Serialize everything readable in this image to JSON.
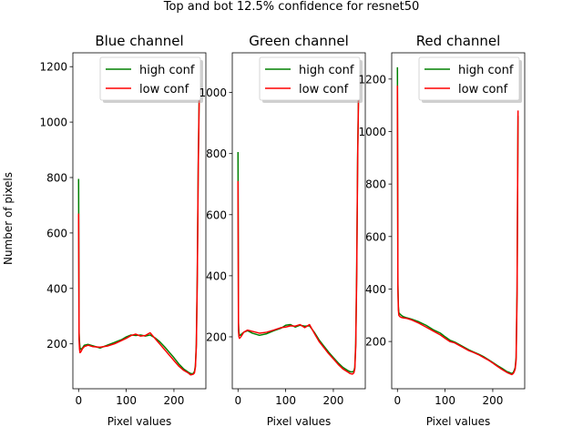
{
  "figure": {
    "suptitle": "Top and bot 12.5% confidence for resnet50",
    "ylabel": "Number of pixels"
  },
  "colors": {
    "high_conf": "#008000",
    "low_conf": "#ff0000",
    "axes": "#000000",
    "background": "#ffffff"
  },
  "chart_data": [
    {
      "type": "line",
      "title": "Blue channel",
      "xlabel": "Pixel values",
      "ylabel": "Number of pixels",
      "xlim": [
        -12,
        267
      ],
      "ylim": [
        38,
        1250
      ],
      "xticks": [
        0,
        100,
        200
      ],
      "yticks": [
        200,
        400,
        600,
        800,
        1000,
        1200
      ],
      "legend": "top-right",
      "grid": false,
      "series": [
        {
          "name": "high conf",
          "x": [
            0,
            1,
            2,
            3,
            5,
            8,
            12,
            20,
            30,
            45,
            60,
            75,
            90,
            100,
            110,
            120,
            130,
            140,
            150,
            160,
            170,
            180,
            190,
            200,
            210,
            220,
            230,
            235,
            240,
            243,
            245,
            247,
            249,
            251,
            253,
            255
          ],
          "y": [
            795,
            240,
            205,
            185,
            180,
            185,
            195,
            198,
            193,
            185,
            195,
            205,
            215,
            225,
            232,
            230,
            232,
            228,
            232,
            222,
            208,
            190,
            170,
            150,
            128,
            110,
            98,
            93,
            92,
            100,
            120,
            200,
            450,
            850,
            1100,
            1140
          ]
        },
        {
          "name": "low conf",
          "x": [
            0,
            1,
            2,
            3,
            5,
            8,
            12,
            20,
            30,
            45,
            60,
            75,
            90,
            100,
            110,
            120,
            130,
            140,
            150,
            160,
            170,
            180,
            190,
            200,
            210,
            220,
            230,
            235,
            240,
            243,
            245,
            247,
            249,
            251,
            253,
            255
          ],
          "y": [
            670,
            215,
            180,
            168,
            172,
            182,
            190,
            195,
            190,
            188,
            192,
            200,
            212,
            220,
            230,
            235,
            228,
            230,
            240,
            220,
            200,
            180,
            160,
            140,
            120,
            105,
            95,
            88,
            90,
            95,
            115,
            190,
            430,
            830,
            1080,
            1120
          ]
        }
      ]
    },
    {
      "type": "line",
      "title": "Green channel",
      "xlabel": "Pixel values",
      "xlim": [
        -12,
        267
      ],
      "ylim": [
        30,
        1130
      ],
      "xticks": [
        0,
        100,
        200
      ],
      "yticks": [
        200,
        400,
        600,
        800,
        1000
      ],
      "legend": "top-right",
      "grid": false,
      "series": [
        {
          "name": "high conf",
          "x": [
            0,
            1,
            2,
            3,
            5,
            8,
            12,
            20,
            30,
            45,
            60,
            75,
            90,
            100,
            110,
            120,
            130,
            140,
            150,
            160,
            170,
            180,
            190,
            200,
            210,
            220,
            230,
            235,
            240,
            243,
            245,
            247,
            249,
            251,
            253,
            255
          ],
          "y": [
            805,
            245,
            215,
            205,
            205,
            210,
            215,
            220,
            212,
            205,
            210,
            220,
            228,
            238,
            240,
            232,
            238,
            235,
            236,
            215,
            190,
            170,
            150,
            132,
            115,
            100,
            90,
            86,
            85,
            88,
            100,
            180,
            420,
            800,
            1020,
            1070
          ]
        },
        {
          "name": "low conf",
          "x": [
            0,
            1,
            2,
            3,
            5,
            8,
            12,
            20,
            30,
            45,
            60,
            75,
            90,
            100,
            110,
            120,
            130,
            140,
            150,
            160,
            170,
            180,
            190,
            200,
            210,
            220,
            230,
            235,
            240,
            243,
            245,
            247,
            249,
            251,
            253,
            255
          ],
          "y": [
            710,
            220,
            200,
            195,
            198,
            205,
            215,
            222,
            218,
            212,
            215,
            222,
            230,
            232,
            236,
            235,
            240,
            230,
            240,
            212,
            185,
            165,
            145,
            128,
            110,
            95,
            85,
            80,
            78,
            82,
            95,
            170,
            400,
            780,
            1000,
            1050
          ]
        }
      ]
    },
    {
      "type": "line",
      "title": "Red channel",
      "xlabel": "Pixel values",
      "xlim": [
        -12,
        267
      ],
      "ylim": [
        20,
        1300
      ],
      "xticks": [
        0,
        100,
        200
      ],
      "yticks": [
        200,
        400,
        600,
        800,
        1000,
        1200
      ],
      "legend": "top-right",
      "grid": false,
      "series": [
        {
          "name": "high conf",
          "x": [
            0,
            1,
            2,
            3,
            5,
            8,
            12,
            20,
            30,
            45,
            60,
            75,
            90,
            100,
            110,
            120,
            130,
            140,
            150,
            160,
            170,
            180,
            190,
            200,
            210,
            220,
            230,
            235,
            240,
            243,
            245,
            247,
            249,
            251,
            253
          ],
          "y": [
            1245,
            420,
            335,
            310,
            305,
            300,
            295,
            290,
            285,
            275,
            262,
            245,
            232,
            218,
            205,
            198,
            188,
            178,
            168,
            160,
            152,
            143,
            132,
            120,
            108,
            97,
            85,
            82,
            78,
            82,
            90,
            100,
            140,
            400,
            1060
          ]
        },
        {
          "name": "low conf",
          "x": [
            0,
            1,
            2,
            3,
            5,
            8,
            12,
            20,
            30,
            45,
            60,
            75,
            90,
            100,
            110,
            120,
            130,
            140,
            150,
            160,
            170,
            180,
            190,
            200,
            210,
            220,
            230,
            235,
            240,
            243,
            245,
            247,
            249,
            251,
            253
          ],
          "y": [
            1175,
            400,
            320,
            300,
            295,
            292,
            290,
            288,
            282,
            270,
            255,
            240,
            225,
            212,
            200,
            195,
            185,
            175,
            165,
            158,
            150,
            140,
            130,
            118,
            105,
            93,
            82,
            78,
            74,
            78,
            85,
            95,
            130,
            380,
            1080
          ]
        }
      ]
    }
  ]
}
